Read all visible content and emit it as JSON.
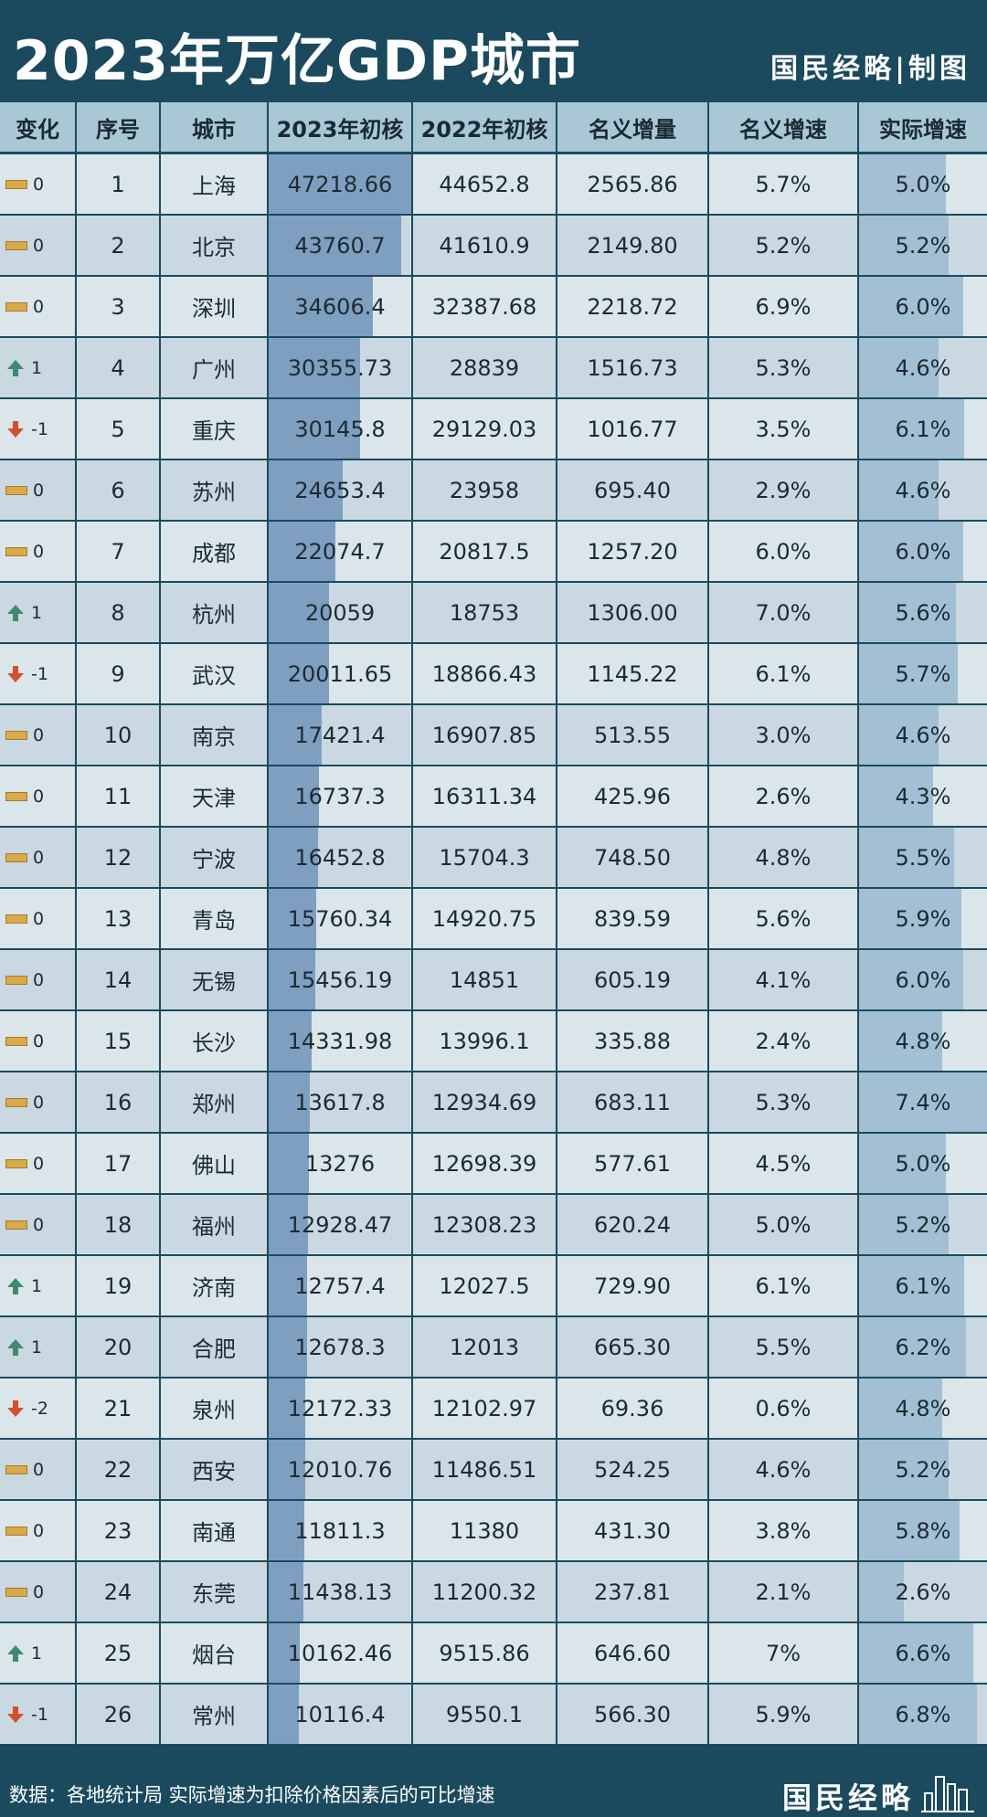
{
  "title": "2023年万亿GDP城市",
  "brand": "国民经略|制图",
  "footer": {
    "note": "数据：各地统计局  实际增速为扣除价格因素后的可比增速",
    "brand": "国民经略"
  },
  "colors": {
    "background": "#1b4a5e",
    "header": "#a9c7d5",
    "row_light": "#dbe6eb",
    "row_dark": "#cad9e1",
    "gdp_bar": "#7f9fc0",
    "growth_bar": "#a3bfd4",
    "up": "#3f8a6f",
    "down": "#d1502f",
    "flat": "#d9a94a"
  },
  "chart_data": {
    "type": "table",
    "columns": [
      "变化",
      "序号",
      "城市",
      "2023年初核",
      "2022年初核",
      "名义增量",
      "名义增速",
      "实际增速"
    ],
    "rows": [
      {
        "change": "0",
        "rank": "1",
        "city": "上海",
        "gdp2023": "47218.66",
        "gdp2022": "44652.8",
        "increase": "2565.86",
        "nominal": "5.7%",
        "real": "5.0%",
        "gdp2023_value": 47218.66,
        "real_value": 5.0
      },
      {
        "change": "0",
        "rank": "2",
        "city": "北京",
        "gdp2023": "43760.7",
        "gdp2022": "41610.9",
        "increase": "2149.80",
        "nominal": "5.2%",
        "real": "5.2%",
        "gdp2023_value": 43760.7,
        "real_value": 5.2
      },
      {
        "change": "0",
        "rank": "3",
        "city": "深圳",
        "gdp2023": "34606.4",
        "gdp2022": "32387.68",
        "increase": "2218.72",
        "nominal": "6.9%",
        "real": "6.0%",
        "gdp2023_value": 34606.4,
        "real_value": 6.0
      },
      {
        "change": "1",
        "rank": "4",
        "city": "广州",
        "gdp2023": "30355.73",
        "gdp2022": "28839",
        "increase": "1516.73",
        "nominal": "5.3%",
        "real": "4.6%",
        "gdp2023_value": 30355.73,
        "real_value": 4.6
      },
      {
        "change": "-1",
        "rank": "5",
        "city": "重庆",
        "gdp2023": "30145.8",
        "gdp2022": "29129.03",
        "increase": "1016.77",
        "nominal": "3.5%",
        "real": "6.1%",
        "gdp2023_value": 30145.8,
        "real_value": 6.1
      },
      {
        "change": "0",
        "rank": "6",
        "city": "苏州",
        "gdp2023": "24653.4",
        "gdp2022": "23958",
        "increase": "695.40",
        "nominal": "2.9%",
        "real": "4.6%",
        "gdp2023_value": 24653.4,
        "real_value": 4.6
      },
      {
        "change": "0",
        "rank": "7",
        "city": "成都",
        "gdp2023": "22074.7",
        "gdp2022": "20817.5",
        "increase": "1257.20",
        "nominal": "6.0%",
        "real": "6.0%",
        "gdp2023_value": 22074.7,
        "real_value": 6.0
      },
      {
        "change": "1",
        "rank": "8",
        "city": "杭州",
        "gdp2023": "20059",
        "gdp2022": "18753",
        "increase": "1306.00",
        "nominal": "7.0%",
        "real": "5.6%",
        "gdp2023_value": 20059,
        "real_value": 5.6
      },
      {
        "change": "-1",
        "rank": "9",
        "city": "武汉",
        "gdp2023": "20011.65",
        "gdp2022": "18866.43",
        "increase": "1145.22",
        "nominal": "6.1%",
        "real": "5.7%",
        "gdp2023_value": 20011.65,
        "real_value": 5.7
      },
      {
        "change": "0",
        "rank": "10",
        "city": "南京",
        "gdp2023": "17421.4",
        "gdp2022": "16907.85",
        "increase": "513.55",
        "nominal": "3.0%",
        "real": "4.6%",
        "gdp2023_value": 17421.4,
        "real_value": 4.6
      },
      {
        "change": "0",
        "rank": "11",
        "city": "天津",
        "gdp2023": "16737.3",
        "gdp2022": "16311.34",
        "increase": "425.96",
        "nominal": "2.6%",
        "real": "4.3%",
        "gdp2023_value": 16737.3,
        "real_value": 4.3
      },
      {
        "change": "0",
        "rank": "12",
        "city": "宁波",
        "gdp2023": "16452.8",
        "gdp2022": "15704.3",
        "increase": "748.50",
        "nominal": "4.8%",
        "real": "5.5%",
        "gdp2023_value": 16452.8,
        "real_value": 5.5
      },
      {
        "change": "0",
        "rank": "13",
        "city": "青岛",
        "gdp2023": "15760.34",
        "gdp2022": "14920.75",
        "increase": "839.59",
        "nominal": "5.6%",
        "real": "5.9%",
        "gdp2023_value": 15760.34,
        "real_value": 5.9
      },
      {
        "change": "0",
        "rank": "14",
        "city": "无锡",
        "gdp2023": "15456.19",
        "gdp2022": "14851",
        "increase": "605.19",
        "nominal": "4.1%",
        "real": "6.0%",
        "gdp2023_value": 15456.19,
        "real_value": 6.0
      },
      {
        "change": "0",
        "rank": "15",
        "city": "长沙",
        "gdp2023": "14331.98",
        "gdp2022": "13996.1",
        "increase": "335.88",
        "nominal": "2.4%",
        "real": "4.8%",
        "gdp2023_value": 14331.98,
        "real_value": 4.8
      },
      {
        "change": "0",
        "rank": "16",
        "city": "郑州",
        "gdp2023": "13617.8",
        "gdp2022": "12934.69",
        "increase": "683.11",
        "nominal": "5.3%",
        "real": "7.4%",
        "gdp2023_value": 13617.8,
        "real_value": 7.4
      },
      {
        "change": "0",
        "rank": "17",
        "city": "佛山",
        "gdp2023": "13276",
        "gdp2022": "12698.39",
        "increase": "577.61",
        "nominal": "4.5%",
        "real": "5.0%",
        "gdp2023_value": 13276,
        "real_value": 5.0
      },
      {
        "change": "0",
        "rank": "18",
        "city": "福州",
        "gdp2023": "12928.47",
        "gdp2022": "12308.23",
        "increase": "620.24",
        "nominal": "5.0%",
        "real": "5.2%",
        "gdp2023_value": 12928.47,
        "real_value": 5.2
      },
      {
        "change": "1",
        "rank": "19",
        "city": "济南",
        "gdp2023": "12757.4",
        "gdp2022": "12027.5",
        "increase": "729.90",
        "nominal": "6.1%",
        "real": "6.1%",
        "gdp2023_value": 12757.4,
        "real_value": 6.1
      },
      {
        "change": "1",
        "rank": "20",
        "city": "合肥",
        "gdp2023": "12678.3",
        "gdp2022": "12013",
        "increase": "665.30",
        "nominal": "5.5%",
        "real": "6.2%",
        "gdp2023_value": 12678.3,
        "real_value": 6.2
      },
      {
        "change": "-2",
        "rank": "21",
        "city": "泉州",
        "gdp2023": "12172.33",
        "gdp2022": "12102.97",
        "increase": "69.36",
        "nominal": "0.6%",
        "real": "4.8%",
        "gdp2023_value": 12172.33,
        "real_value": 4.8
      },
      {
        "change": "0",
        "rank": "22",
        "city": "西安",
        "gdp2023": "12010.76",
        "gdp2022": "11486.51",
        "increase": "524.25",
        "nominal": "4.6%",
        "real": "5.2%",
        "gdp2023_value": 12010.76,
        "real_value": 5.2
      },
      {
        "change": "0",
        "rank": "23",
        "city": "南通",
        "gdp2023": "11811.3",
        "gdp2022": "11380",
        "increase": "431.30",
        "nominal": "3.8%",
        "real": "5.8%",
        "gdp2023_value": 11811.3,
        "real_value": 5.8
      },
      {
        "change": "0",
        "rank": "24",
        "city": "东莞",
        "gdp2023": "11438.13",
        "gdp2022": "11200.32",
        "increase": "237.81",
        "nominal": "2.1%",
        "real": "2.6%",
        "gdp2023_value": 11438.13,
        "real_value": 2.6
      },
      {
        "change": "1",
        "rank": "25",
        "city": "烟台",
        "gdp2023": "10162.46",
        "gdp2022": "9515.86",
        "increase": "646.60",
        "nominal": "7%",
        "real": "6.6%",
        "gdp2023_value": 10162.46,
        "real_value": 6.6
      },
      {
        "change": "-1",
        "rank": "26",
        "city": "常州",
        "gdp2023": "10116.4",
        "gdp2022": "9550.1",
        "increase": "566.30",
        "nominal": "5.9%",
        "real": "6.8%",
        "gdp2023_value": 10116.4,
        "real_value": 6.8
      }
    ]
  }
}
